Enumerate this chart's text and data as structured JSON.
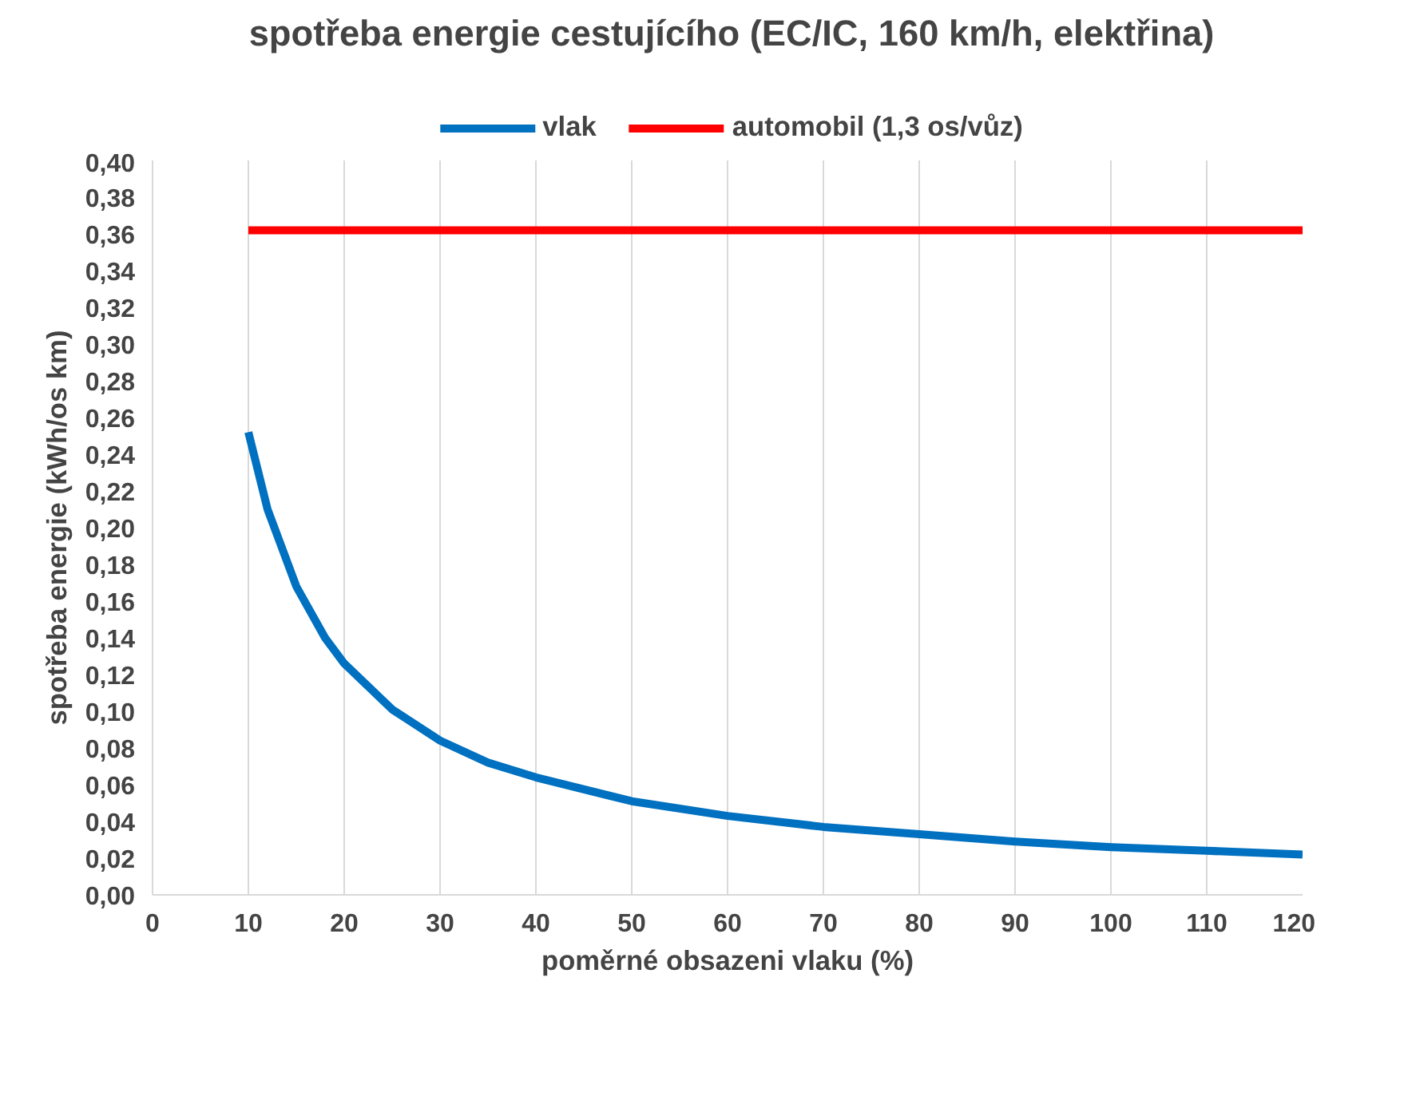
{
  "chart_data": {
    "type": "line",
    "title": "spotřeba energie cestujícího (EC/IC, 160 km/h, elektřina)",
    "xlabel": "poměrné obsazeni vlaku (%)",
    "ylabel": "spotřeba energie (kWh/os km)",
    "series": [
      {
        "name": "vlak",
        "color": "#0070c0",
        "x": [
          10,
          12,
          15,
          18,
          20,
          25,
          30,
          35,
          40,
          50,
          60,
          70,
          80,
          90,
          100,
          110,
          120
        ],
        "values": [
          0.252,
          0.21,
          0.168,
          0.14,
          0.126,
          0.101,
          0.084,
          0.072,
          0.064,
          0.051,
          0.043,
          0.037,
          0.033,
          0.029,
          0.026,
          0.024,
          0.022
        ]
      },
      {
        "name": "automobil (1,3 os/vůz)",
        "color": "#ff0000",
        "x": [
          10,
          120
        ],
        "values": [
          0.362,
          0.362
        ]
      }
    ],
    "xlim": [
      0,
      120
    ],
    "xticks": [
      0,
      10,
      20,
      30,
      40,
      50,
      60,
      70,
      80,
      90,
      100,
      110,
      120
    ],
    "ylim": [
      0,
      0.4
    ],
    "yticks": [
      {
        "value": 0,
        "label": "0,00"
      },
      {
        "value": 0.02,
        "label": "0,02"
      },
      {
        "value": 0.04,
        "label": "0,04"
      },
      {
        "value": 0.06,
        "label": "0,06"
      },
      {
        "value": 0.08,
        "label": "0,08"
      },
      {
        "value": 0.1,
        "label": "0,10"
      },
      {
        "value": 0.12,
        "label": "0,12"
      },
      {
        "value": 0.14,
        "label": "0,14"
      },
      {
        "value": 0.16,
        "label": "0,16"
      },
      {
        "value": 0.18,
        "label": "0,18"
      },
      {
        "value": 0.2,
        "label": "0,20"
      },
      {
        "value": 0.22,
        "label": "0,22"
      },
      {
        "value": 0.24,
        "label": "0,24"
      },
      {
        "value": 0.26,
        "label": "0,26"
      },
      {
        "value": 0.28,
        "label": "0,28"
      },
      {
        "value": 0.3,
        "label": "0,30"
      },
      {
        "value": 0.32,
        "label": "0,32"
      },
      {
        "value": 0.34,
        "label": "0,34"
      },
      {
        "value": 0.36,
        "label": "0,36"
      },
      {
        "value": 0.38,
        "label": "0,38"
      },
      {
        "value": 0.4,
        "label": "0,40"
      }
    ],
    "grid": "x",
    "legend": "top",
    "marker": "none",
    "line_style": "solid"
  }
}
